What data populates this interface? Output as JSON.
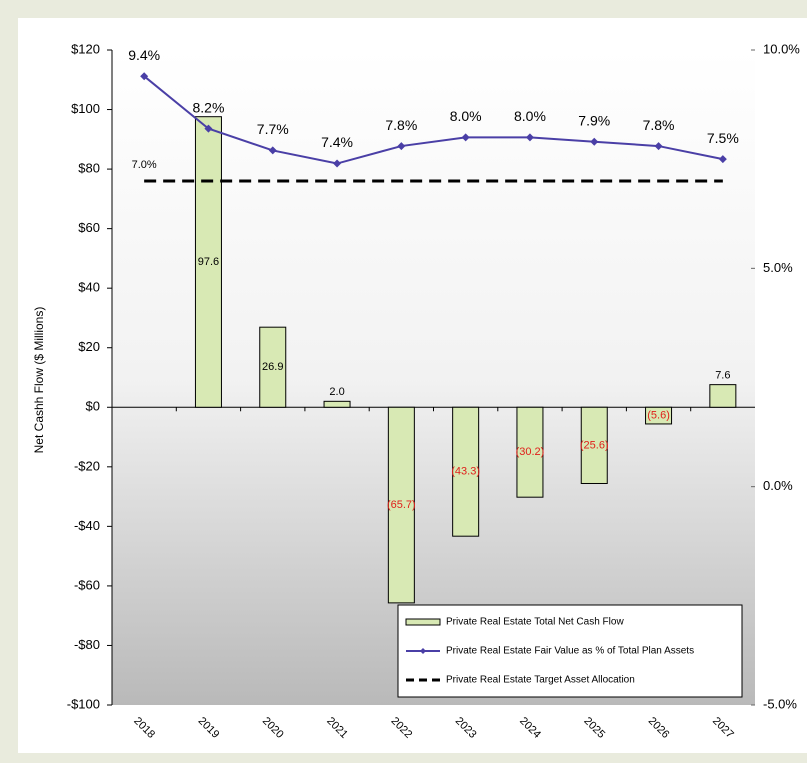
{
  "chart_data": {
    "type": "bar",
    "y_label": "Net Cashh Flow ($ Millions)",
    "categories": [
      "2018",
      "2019",
      "2020",
      "2021",
      "2022",
      "2023",
      "2024",
      "2025",
      "2026",
      "2027"
    ],
    "ylim": [
      -100,
      120
    ],
    "yticks": [
      {
        "value": -100,
        "label": "-$100"
      },
      {
        "value": -80,
        "label": "-$80"
      },
      {
        "value": -60,
        "label": "-$60"
      },
      {
        "value": -40,
        "label": "-$40"
      },
      {
        "value": -20,
        "label": "-$20"
      },
      {
        "value": 0,
        "label": "$0"
      },
      {
        "value": 20,
        "label": "$20"
      },
      {
        "value": 40,
        "label": "$40"
      },
      {
        "value": 60,
        "label": "$60"
      },
      {
        "value": 80,
        "label": "$80"
      },
      {
        "value": 100,
        "label": "$100"
      },
      {
        "value": 120,
        "label": "$120"
      }
    ],
    "y2lim": [
      -5,
      10
    ],
    "y2ticks": [
      {
        "value": -5,
        "label": "-5.0%"
      },
      {
        "value": 0,
        "label": "0.0%"
      },
      {
        "value": 5,
        "label": "5.0%"
      },
      {
        "value": 10,
        "label": "10.0%"
      }
    ],
    "legend": "bottom-right",
    "series": [
      {
        "name": "Private Real Estate Total Net Cash Flow",
        "type": "bar",
        "color": "#d8e9b4",
        "values": [
          null,
          97.6,
          26.9,
          2.0,
          -65.7,
          -43.3,
          -30.2,
          -25.6,
          -5.6,
          7.6
        ],
        "value_labels": [
          null,
          "97.6",
          "26.9",
          "2.0",
          "(65.7)",
          "(43.3)",
          "(30.2)",
          "(25.6)",
          "(5.6)",
          "7.6"
        ]
      },
      {
        "name": "Private Real Estate Fair Value as % of Total Plan Assets",
        "type": "line",
        "axis": "y2",
        "color": "#4a3fa6",
        "values": [
          9.4,
          8.2,
          7.7,
          7.4,
          7.8,
          8.0,
          8.0,
          7.9,
          7.8,
          7.5
        ],
        "value_labels": [
          "9.4%",
          "8.2%",
          "7.7%",
          "7.4%",
          "7.8%",
          "8.0%",
          "8.0%",
          "7.9%",
          "7.8%",
          "7.5%"
        ]
      },
      {
        "name": "Private Real Estate Target Asset Allocation",
        "type": "line",
        "axis": "y2",
        "color": "#000000",
        "dashed": true,
        "values": [
          7.0,
          7.0,
          7.0,
          7.0,
          7.0,
          7.0,
          7.0,
          7.0,
          7.0,
          7.0
        ],
        "value_labels": [
          "7.0%",
          null,
          null,
          null,
          null,
          null,
          null,
          null,
          null,
          null
        ]
      }
    ]
  }
}
